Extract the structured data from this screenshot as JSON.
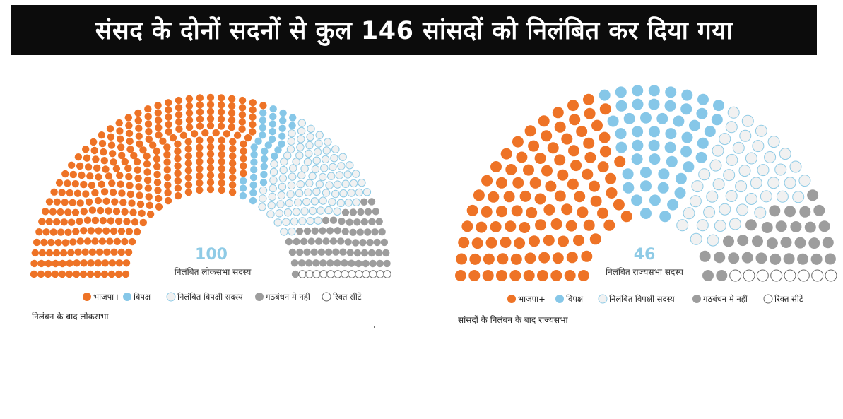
{
  "headline": "संसद के दोनों सदनों से कुल 146 सांसदों को निलंबित कर दिया गया",
  "colors": {
    "bjp": "#ee7326",
    "opposition": "#86c7e8",
    "suspended_fill": "#f1f1f1",
    "suspended_stroke": "#8fcbe6",
    "not_in_alliance": "#9d9d9d",
    "vacant_fill": "#ffffff",
    "vacant_stroke": "#666666"
  },
  "chart_data": [
    {
      "type": "parliament",
      "house": "लोकसभा",
      "caption": "निलंबन के बाद लोकसभा",
      "center_value": "100",
      "center_label": "निलंबित लोकसभा सदस्य",
      "legend": [
        "भाजपा+",
        "विपक्ष",
        "निलंबित विपक्षी सदस्य",
        "गठबंधन मे नहीं",
        "रिक्त सीटें"
      ],
      "seats": [
        {
          "group": "bjp",
          "count": 324
        },
        {
          "group": "opposition",
          "count": 36
        },
        {
          "group": "suspended",
          "count": 100
        },
        {
          "group": "not_in_alliance",
          "count": 70
        },
        {
          "group": "vacant",
          "count": 13
        }
      ]
    },
    {
      "type": "parliament",
      "house": "राज्यसभा",
      "caption": "सांसदों के निलंबन के बाद राज्यसभा",
      "center_value": "46",
      "center_label": "निलंबित राज्यसभा सदस्य",
      "legend": [
        "भाजपा+",
        "विपक्ष",
        "निलंबित विपक्षी सदस्य",
        "गठबंधन मे नहीं",
        "रिक्त सीटें"
      ],
      "seats": [
        {
          "group": "bjp",
          "count": 102
        },
        {
          "group": "opposition",
          "count": 51
        },
        {
          "group": "suspended",
          "count": 46
        },
        {
          "group": "not_in_alliance",
          "count": 31
        },
        {
          "group": "vacant",
          "count": 8
        }
      ]
    }
  ]
}
